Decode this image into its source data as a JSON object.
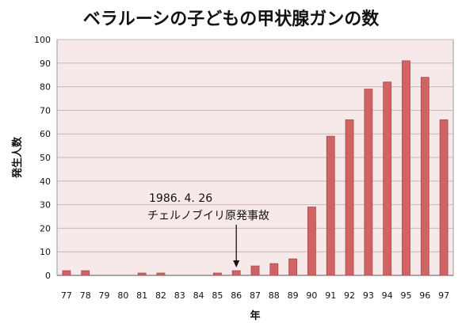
{
  "title": "ベラルーシの子どもの甲状腺ガンの数",
  "chart_data": {
    "type": "bar",
    "title": "ベラルーシの子どもの甲状腺ガンの数",
    "xlabel": "年",
    "ylabel": "発生人数",
    "categories": [
      "77",
      "78",
      "79",
      "80",
      "81",
      "82",
      "83",
      "84",
      "85",
      "86",
      "87",
      "88",
      "89",
      "90",
      "91",
      "92",
      "93",
      "94",
      "95",
      "96",
      "97"
    ],
    "values": [
      2,
      2,
      0,
      0,
      1,
      1,
      0,
      0,
      1,
      2,
      4,
      5,
      7,
      29,
      59,
      66,
      79,
      82,
      91,
      84,
      66
    ],
    "ylim": [
      0,
      100
    ],
    "yticks": [
      0,
      10,
      20,
      30,
      40,
      50,
      60,
      70,
      80,
      90,
      100
    ],
    "grid": true,
    "colors": {
      "bar": "#d06464",
      "bar_edge": "#a84848",
      "plot_bg": "#f7e9ea",
      "grid": "#c4b8b8"
    },
    "annotation": {
      "date": "1986. 4. 26",
      "text": "チェルノブイリ原発事故",
      "category": "86"
    }
  }
}
